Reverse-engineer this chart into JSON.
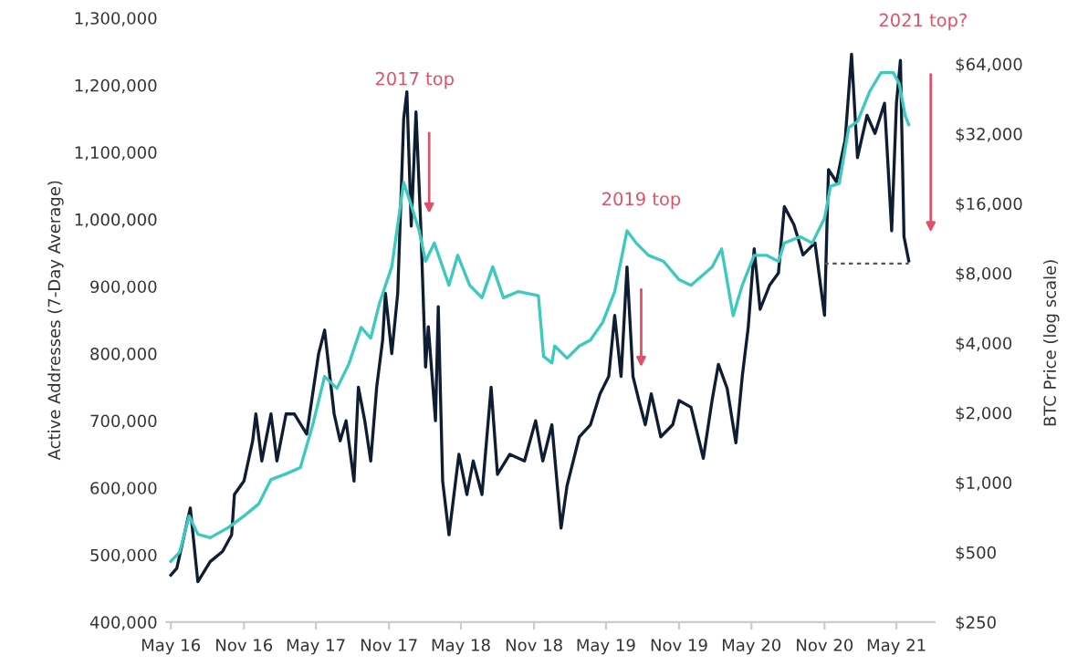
{
  "chart_data": {
    "type": "line",
    "ylabel": "Active Addresses (7-Day Average)",
    "y2label": "BTC Price (log scale)",
    "xlim": [
      "2016-04-20",
      "2021-08-05"
    ],
    "xticks": [
      {
        "value": "2016-05-01",
        "label": "May 16"
      },
      {
        "value": "2016-11-01",
        "label": "Nov 16"
      },
      {
        "value": "2017-05-01",
        "label": "May 17"
      },
      {
        "value": "2017-11-01",
        "label": "Nov 17"
      },
      {
        "value": "2018-05-01",
        "label": "May 18"
      },
      {
        "value": "2018-11-01",
        "label": "Nov 18"
      },
      {
        "value": "2019-05-01",
        "label": "May 19"
      },
      {
        "value": "2019-11-01",
        "label": "Nov 19"
      },
      {
        "value": "2020-05-01",
        "label": "May 20"
      },
      {
        "value": "2020-11-01",
        "label": "Nov 20"
      },
      {
        "value": "2021-05-01",
        "label": "May 21"
      }
    ],
    "ylim": [
      400000,
      1300000
    ],
    "yticks": [
      {
        "value": 400000,
        "label": "400,000"
      },
      {
        "value": 500000,
        "label": "500,000"
      },
      {
        "value": 600000,
        "label": "600,000"
      },
      {
        "value": 700000,
        "label": "700,000"
      },
      {
        "value": 800000,
        "label": "800,000"
      },
      {
        "value": 900000,
        "label": "900,000"
      },
      {
        "value": 1000000,
        "label": "1,000,000"
      },
      {
        "value": 1100000,
        "label": "1,100,000"
      },
      {
        "value": 1200000,
        "label": "1,200,000"
      },
      {
        "value": 1300000,
        "label": "1,300,000"
      }
    ],
    "log": "y2",
    "y2lim": [
      250,
      64000
    ],
    "y2ticks": [
      {
        "value": 250,
        "label": "$250"
      },
      {
        "value": 500,
        "label": "$500"
      },
      {
        "value": 1000,
        "label": "$1,000"
      },
      {
        "value": 2000,
        "label": "$2,000"
      },
      {
        "value": 4000,
        "label": "$4,000"
      },
      {
        "value": 8000,
        "label": "$8,000"
      },
      {
        "value": 16000,
        "label": "$16,000"
      },
      {
        "value": 32000,
        "label": "$32,000"
      },
      {
        "value": 64000,
        "label": "$64,000"
      }
    ],
    "grid": false,
    "legend": false,
    "marker": "none",
    "series": [
      {
        "color": "#3ec9c0",
        "axis": "y2",
        "line_style": "solid",
        "x": [
          "2016-05-01",
          "2016-05-23",
          "2016-06-16",
          "2016-07-08",
          "2016-08-08",
          "2016-09-23",
          "2016-11-01",
          "2016-12-08",
          "2017-01-08",
          "2017-02-15",
          "2017-03-23",
          "2017-04-23",
          "2017-05-23",
          "2017-06-23",
          "2017-07-23",
          "2017-08-23",
          "2017-09-16",
          "2017-10-08",
          "2017-11-08",
          "2017-12-08",
          "2017-12-23",
          "2018-01-16",
          "2018-02-01",
          "2018-02-23",
          "2018-04-01",
          "2018-04-23",
          "2018-05-23",
          "2018-06-23",
          "2018-07-20",
          "2018-08-16",
          "2018-09-23",
          "2018-10-24",
          "2018-11-12",
          "2018-11-25",
          "2018-12-16",
          "2018-12-23",
          "2019-01-23",
          "2019-02-23",
          "2019-03-23",
          "2019-04-23",
          "2019-05-23",
          "2019-06-23",
          "2019-07-16",
          "2019-08-16",
          "2019-09-23",
          "2019-11-01",
          "2019-12-01",
          "2020-01-23",
          "2020-02-16",
          "2020-03-16",
          "2020-04-08",
          "2020-05-08",
          "2020-06-08",
          "2020-07-08",
          "2020-07-23",
          "2020-09-01",
          "2020-10-01",
          "2020-11-01",
          "2020-11-16",
          "2020-12-08",
          "2021-01-01",
          "2021-01-23",
          "2021-02-23",
          "2021-03-23",
          "2021-04-23",
          "2021-05-08",
          "2021-05-23",
          "2021-06-01"
        ],
        "values": [
          457,
          500,
          717,
          598,
          578,
          640,
          717,
          808,
          1030,
          1090,
          1160,
          1770,
          2870,
          2550,
          3250,
          4670,
          4200,
          5930,
          8530,
          19700,
          16500,
          12200,
          9000,
          10800,
          7100,
          9560,
          7100,
          6270,
          8530,
          6270,
          6670,
          6500,
          6400,
          3500,
          3280,
          3880,
          3440,
          3880,
          4120,
          4920,
          6670,
          12200,
          10800,
          9560,
          9000,
          7500,
          7100,
          8500,
          10200,
          5250,
          7100,
          9560,
          9560,
          9000,
          10800,
          11500,
          10800,
          13800,
          19000,
          19500,
          34000,
          36100,
          48800,
          58700,
          58700,
          52600,
          38300,
          35000
        ]
      },
      {
        "color": "#0f1d33",
        "axis": "y",
        "line_style": "solid",
        "x": [
          "2016-05-01",
          "2016-05-16",
          "2016-06-19",
          "2016-07-08",
          "2016-08-08",
          "2016-09-08",
          "2016-10-01",
          "2016-10-08",
          "2016-11-01",
          "2016-11-23",
          "2016-12-01",
          "2016-12-16",
          "2017-01-08",
          "2017-01-23",
          "2017-02-15",
          "2017-03-08",
          "2017-04-08",
          "2017-05-08",
          "2017-05-23",
          "2017-06-16",
          "2017-07-01",
          "2017-07-16",
          "2017-08-05",
          "2017-08-16",
          "2017-09-01",
          "2017-09-16",
          "2017-10-01",
          "2017-10-16",
          "2017-10-23",
          "2017-11-08",
          "2017-11-23",
          "2017-12-08",
          "2017-12-16",
          "2017-12-27",
          "2018-01-08",
          "2018-01-20",
          "2018-02-01",
          "2018-02-08",
          "2018-02-26",
          "2018-03-05",
          "2018-03-16",
          "2018-04-01",
          "2018-04-26",
          "2018-05-16",
          "2018-06-01",
          "2018-06-23",
          "2018-07-16",
          "2018-08-01",
          "2018-09-01",
          "2018-10-08",
          "2018-11-05",
          "2018-11-23",
          "2018-12-16",
          "2019-01-08",
          "2019-01-23",
          "2019-02-23",
          "2019-03-23",
          "2019-04-16",
          "2019-05-08",
          "2019-05-23",
          "2019-06-08",
          "2019-06-23",
          "2019-07-08",
          "2019-07-23",
          "2019-08-08",
          "2019-08-23",
          "2019-09-16",
          "2019-10-16",
          "2019-11-01",
          "2019-12-01",
          "2020-01-01",
          "2020-01-23",
          "2020-02-08",
          "2020-03-01",
          "2020-03-23",
          "2020-04-08",
          "2020-04-23",
          "2020-05-08",
          "2020-05-23",
          "2020-06-16",
          "2020-07-08",
          "2020-07-23",
          "2020-08-16",
          "2020-09-08",
          "2020-10-08",
          "2020-11-01",
          "2020-11-11",
          "2020-12-01",
          "2020-12-23",
          "2021-01-08",
          "2021-01-23",
          "2021-02-16",
          "2021-03-08",
          "2021-04-01",
          "2021-04-19",
          "2021-05-01",
          "2021-05-11",
          "2021-05-20",
          "2021-06-01"
        ],
        "values": [
          470000,
          480000,
          570000,
          460000,
          490000,
          505000,
          530000,
          590000,
          610000,
          670000,
          710000,
          640000,
          710000,
          640000,
          710000,
          710000,
          680000,
          800000,
          835000,
          710000,
          670000,
          700000,
          610000,
          750000,
          700000,
          640000,
          750000,
          820000,
          890000,
          800000,
          890000,
          1150000,
          1190000,
          990000,
          1160000,
          990000,
          780000,
          840000,
          700000,
          870000,
          610000,
          530000,
          650000,
          590000,
          640000,
          590000,
          750000,
          620000,
          650000,
          640000,
          700000,
          640000,
          694000,
          540000,
          603000,
          676000,
          694000,
          740000,
          766000,
          857000,
          766000,
          929000,
          766000,
          730000,
          694000,
          740000,
          676000,
          694000,
          730000,
          720000,
          644000,
          730000,
          784000,
          748000,
          667000,
          766000,
          839000,
          956000,
          866000,
          902000,
          920000,
          1019000,
          992000,
          947000,
          965000,
          857000,
          1074000,
          1056000,
          1119000,
          1246000,
          1092000,
          1155000,
          1128000,
          1173000,
          983000,
          1173000,
          1237000,
          974000,
          938000
        ]
      },
      {
        "color": "#555555",
        "axis": "y",
        "line_style": "dashed",
        "x": [
          "2020-11-01",
          "2021-06-01"
        ],
        "values": [
          934000,
          934000
        ]
      }
    ],
    "annotations": [
      "2017 top",
      "2019 top",
      "2021 top?"
    ]
  }
}
